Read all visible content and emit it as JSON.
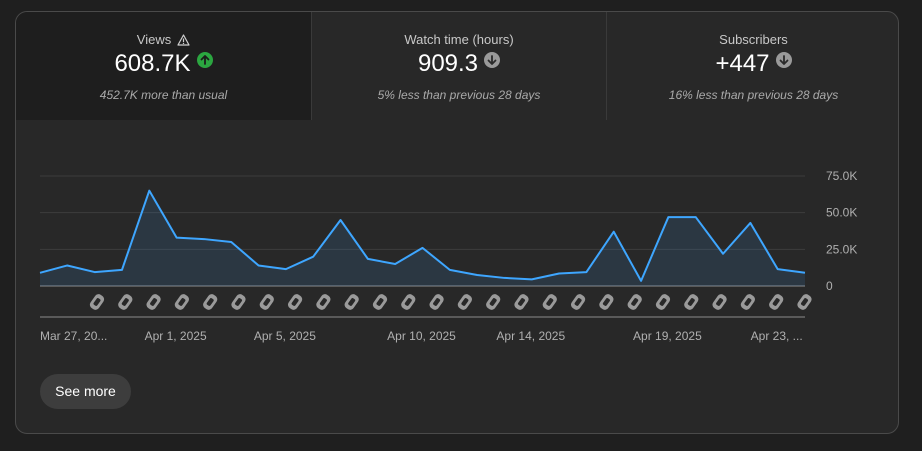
{
  "stats": [
    {
      "label": "Views",
      "value": "608.7K",
      "trend": "up",
      "note": "452.7K more than usual",
      "warning_icon": "warning-triangle-icon"
    },
    {
      "label": "Watch time (hours)",
      "value": "909.3",
      "trend": "down",
      "note": "5% less than previous 28 days"
    },
    {
      "label": "Subscribers",
      "value": "+447",
      "trend": "down",
      "note": "16% less than previous 28 days"
    }
  ],
  "colors": {
    "line": "#3ea6ff",
    "up": "#2ba640",
    "down": "#9a9a9a"
  },
  "chart_data": {
    "type": "area",
    "x": [
      "Mar 27",
      "Mar 28",
      "Mar 29",
      "Mar 30",
      "Mar 31",
      "Apr 1",
      "Apr 2",
      "Apr 3",
      "Apr 4",
      "Apr 5",
      "Apr 6",
      "Apr 7",
      "Apr 8",
      "Apr 9",
      "Apr 10",
      "Apr 11",
      "Apr 12",
      "Apr 13",
      "Apr 14",
      "Apr 15",
      "Apr 16",
      "Apr 17",
      "Apr 18",
      "Apr 19",
      "Apr 20",
      "Apr 21",
      "Apr 22",
      "Apr 23",
      "Apr 24"
    ],
    "values": [
      9000,
      14000,
      9500,
      11000,
      65000,
      33000,
      32000,
      30000,
      14000,
      11500,
      20000,
      45000,
      18500,
      15000,
      26000,
      11000,
      7500,
      5500,
      4500,
      8500,
      9500,
      37000,
      3500,
      47000,
      47000,
      22000,
      43000,
      11500,
      9000
    ],
    "x_tick_labels": [
      "Mar 27, 20...",
      "Apr 1, 2025",
      "Apr 5, 2025",
      "Apr 10, 2025",
      "Apr 14, 2025",
      "Apr 19, 2025",
      "Apr 23, ..."
    ],
    "x_tick_index": [
      0,
      5,
      9,
      14,
      18,
      23,
      27
    ],
    "y_ticks": [
      "0",
      "25.0K",
      "50.0K",
      "75.0K"
    ],
    "y_tick_values": [
      0,
      25000,
      50000,
      75000
    ],
    "ylim": [
      0,
      75000
    ],
    "grid": true,
    "shorts_markers": 27,
    "marker_icon": "shorts-icon"
  },
  "see_more": "See more"
}
